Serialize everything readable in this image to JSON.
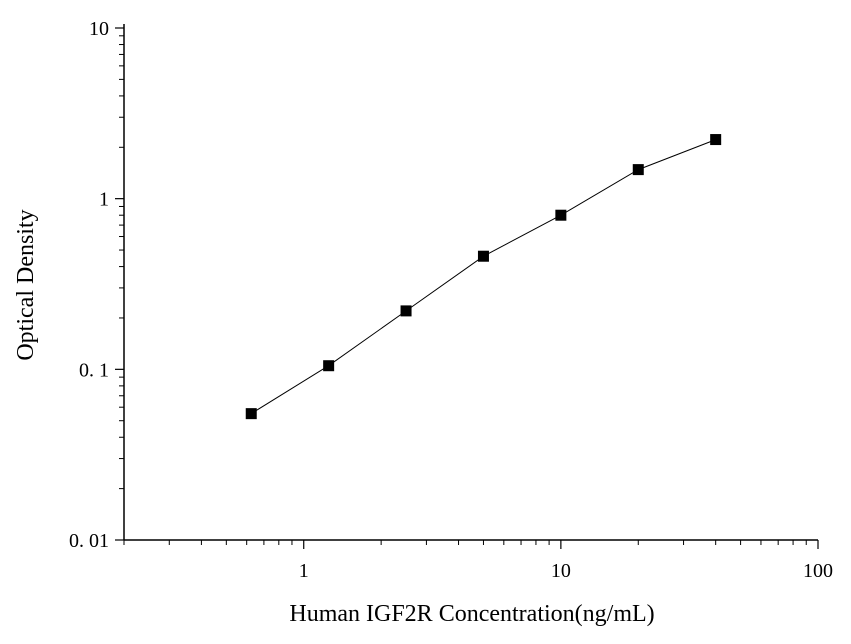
{
  "chart_data": {
    "type": "scatter",
    "title": "",
    "xlabel": "Human IGF2R Concentration(ng/mL)",
    "ylabel": "Optical Density",
    "xscale": "log",
    "yscale": "log",
    "xlim": [
      0.2,
      100
    ],
    "ylim": [
      0.01,
      10
    ],
    "x_tick_labels": [
      {
        "value": 1,
        "label": "1"
      },
      {
        "value": 10,
        "label": "10"
      },
      {
        "value": 100,
        "label": "100"
      }
    ],
    "y_tick_labels": [
      {
        "value": 10,
        "label": "10"
      },
      {
        "value": 1,
        "label": "1"
      },
      {
        "value": 0.1,
        "label": "0. 1"
      },
      {
        "value": 0.01,
        "label": "0. 01"
      }
    ],
    "grid": false,
    "legend": "none",
    "series": [
      {
        "marker": "square",
        "line": true,
        "color": "#000000",
        "points": [
          {
            "x": 0.625,
            "y": 0.055
          },
          {
            "x": 1.25,
            "y": 0.105
          },
          {
            "x": 2.5,
            "y": 0.22
          },
          {
            "x": 5,
            "y": 0.46
          },
          {
            "x": 10,
            "y": 0.8
          },
          {
            "x": 20,
            "y": 1.48
          },
          {
            "x": 40,
            "y": 2.22
          }
        ]
      }
    ]
  }
}
